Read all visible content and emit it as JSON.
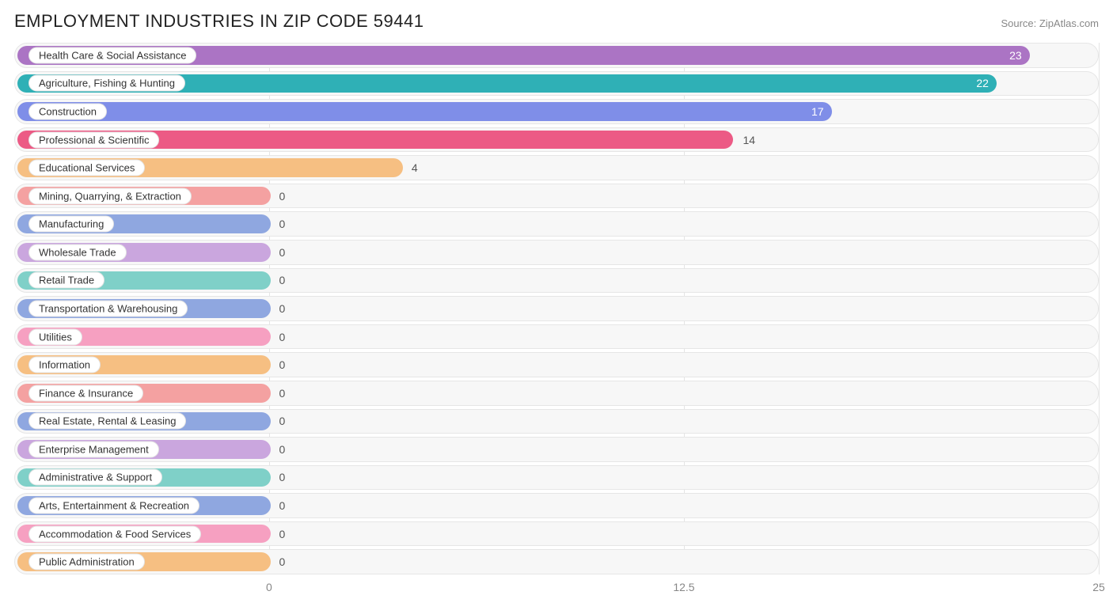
{
  "title": "EMPLOYMENT INDUSTRIES IN ZIP CODE 59441",
  "source": "Source: ZipAtlas.com",
  "chart": {
    "type": "bar-horizontal",
    "xmin": 0,
    "xmax": 25,
    "xticks": [
      0,
      12.5,
      25
    ],
    "background_color": "#ffffff",
    "track_bg": "#f7f7f7",
    "track_border": "#e6e6e6",
    "grid_color": "#e4e4e4",
    "axis_label_color": "#878787",
    "label_text_color": "#333333",
    "label_fontsize": 13,
    "value_fontsize": 14,
    "title_fontsize": 22,
    "title_color": "#222222",
    "source_fontsize": 13,
    "source_color": "#888888",
    "zero_bar_pct": 23.5,
    "label_pill_min_pct": 23.5,
    "bars": [
      {
        "label": "Health Care & Social Assistance",
        "value": 23,
        "color": "#ab74c4",
        "value_inside": true
      },
      {
        "label": "Agriculture, Fishing & Hunting",
        "value": 22,
        "color": "#2fb0b6",
        "value_inside": true
      },
      {
        "label": "Construction",
        "value": 17,
        "color": "#7f8ee8",
        "value_inside": true
      },
      {
        "label": "Professional & Scientific",
        "value": 14,
        "color": "#ec5a85",
        "value_inside": false
      },
      {
        "label": "Educational Services",
        "value": 4,
        "color": "#f6bf82",
        "value_inside": false
      },
      {
        "label": "Mining, Quarrying, & Extraction",
        "value": 0,
        "color": "#f4a1a1",
        "value_inside": false
      },
      {
        "label": "Manufacturing",
        "value": 0,
        "color": "#8fa7e0",
        "value_inside": false
      },
      {
        "label": "Wholesale Trade",
        "value": 0,
        "color": "#caa6de",
        "value_inside": false
      },
      {
        "label": "Retail Trade",
        "value": 0,
        "color": "#7fd0c8",
        "value_inside": false
      },
      {
        "label": "Transportation & Warehousing",
        "value": 0,
        "color": "#8fa7e0",
        "value_inside": false
      },
      {
        "label": "Utilities",
        "value": 0,
        "color": "#f6a0c1",
        "value_inside": false
      },
      {
        "label": "Information",
        "value": 0,
        "color": "#f6bf82",
        "value_inside": false
      },
      {
        "label": "Finance & Insurance",
        "value": 0,
        "color": "#f4a1a1",
        "value_inside": false
      },
      {
        "label": "Real Estate, Rental & Leasing",
        "value": 0,
        "color": "#8fa7e0",
        "value_inside": false
      },
      {
        "label": "Enterprise Management",
        "value": 0,
        "color": "#caa6de",
        "value_inside": false
      },
      {
        "label": "Administrative & Support",
        "value": 0,
        "color": "#7fd0c8",
        "value_inside": false
      },
      {
        "label": "Arts, Entertainment & Recreation",
        "value": 0,
        "color": "#8fa7e0",
        "value_inside": false
      },
      {
        "label": "Accommodation & Food Services",
        "value": 0,
        "color": "#f6a0c1",
        "value_inside": false
      },
      {
        "label": "Public Administration",
        "value": 0,
        "color": "#f6bf82",
        "value_inside": false
      }
    ]
  }
}
